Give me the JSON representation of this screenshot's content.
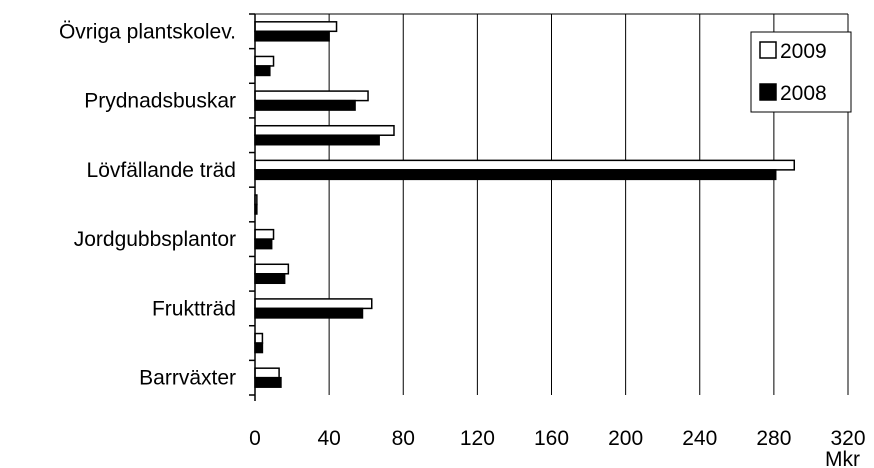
{
  "chart_data": {
    "type": "bar",
    "orientation": "horizontal",
    "categories": [
      "Övriga plantskolev.",
      "",
      "Prydnadsbuskar",
      "",
      "Lövfällande träd",
      "",
      "Jordgubbsplantor",
      "",
      "Fruktträd",
      "",
      "Barrväxter"
    ],
    "series": [
      {
        "name": "2009",
        "color": "#ffffff",
        "values": [
          44,
          10,
          61,
          75,
          291,
          1,
          10,
          18,
          63,
          4,
          13
        ]
      },
      {
        "name": "2008",
        "color": "#000000",
        "values": [
          40,
          8,
          54,
          67,
          281,
          1,
          9,
          16,
          58,
          4,
          14
        ]
      }
    ],
    "xlim": [
      0,
      320
    ],
    "xticks": [
      0,
      40,
      80,
      120,
      160,
      200,
      240,
      280,
      320
    ],
    "x_unit": "Mkr",
    "grid": "vertical",
    "legend_position": "top-right"
  }
}
